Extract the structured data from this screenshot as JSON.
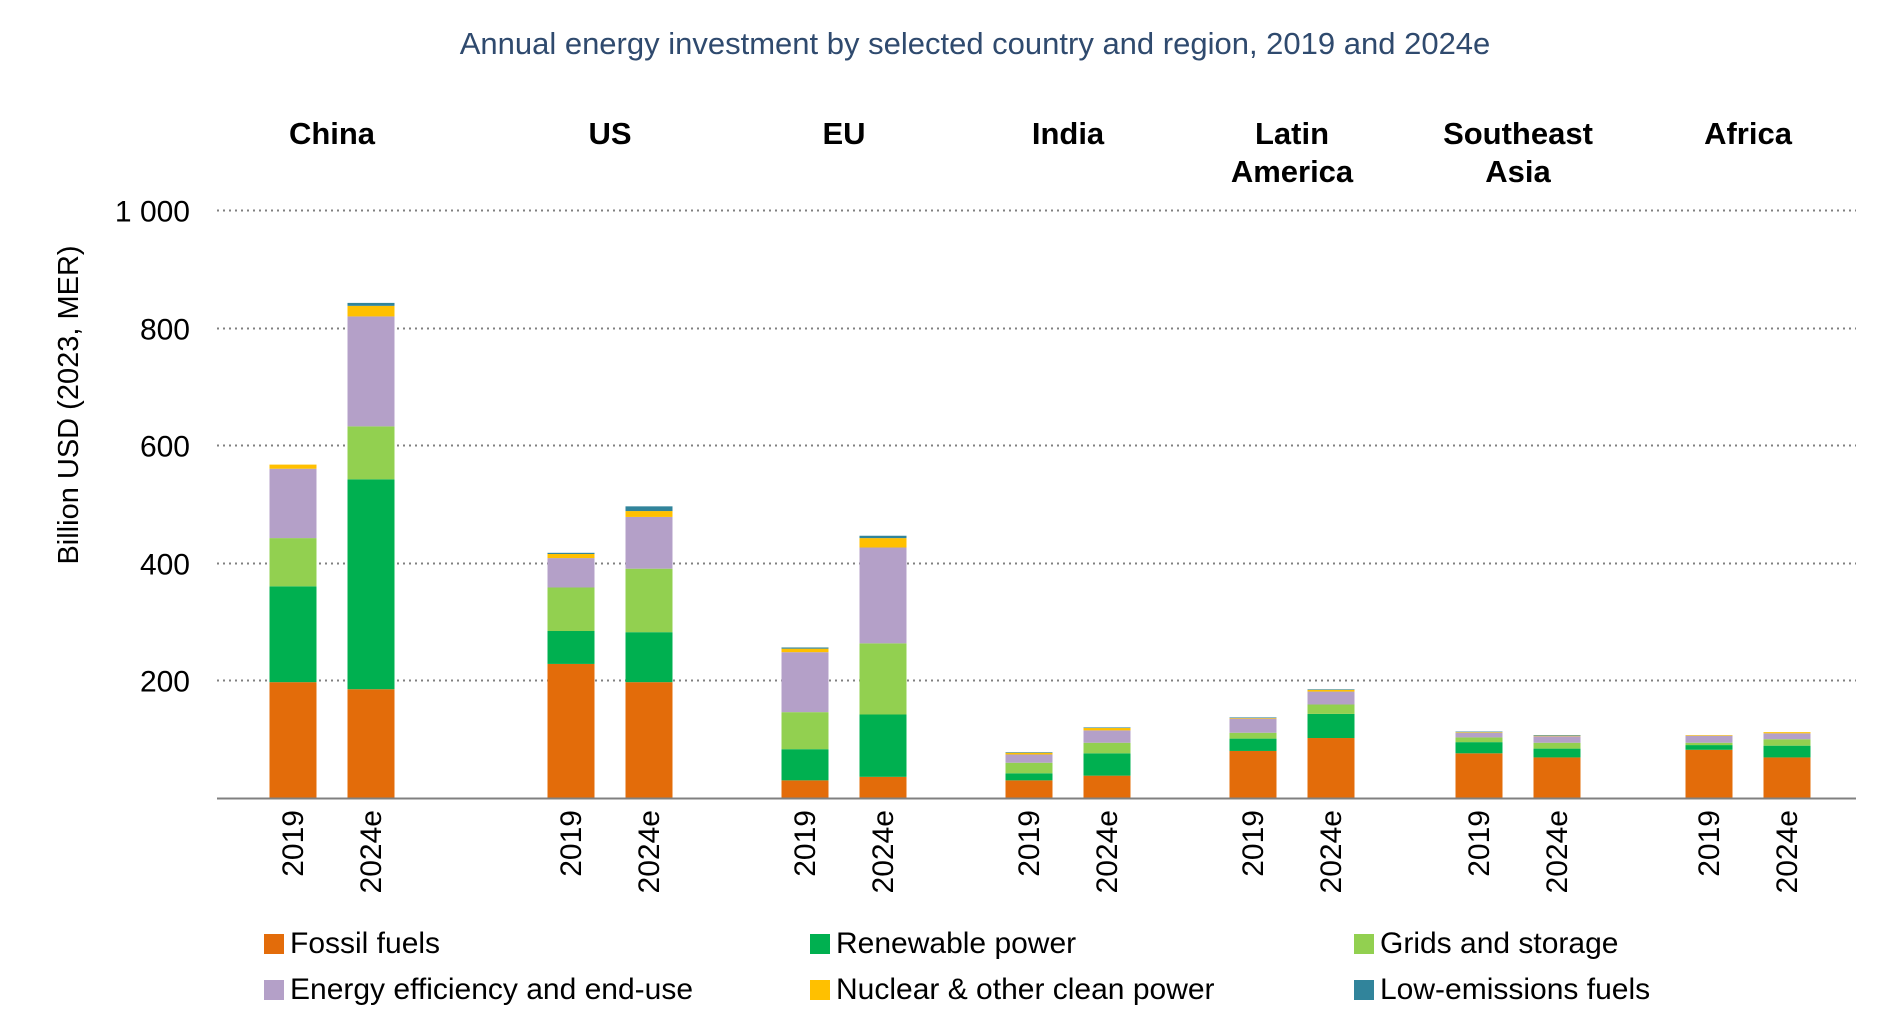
{
  "chart_data": {
    "type": "bar",
    "stacked": true,
    "title": "Annual energy investment by selected country and region, 2019 and 2024e",
    "ylabel": "Billion USD (2023, MER)",
    "ylim": [
      0,
      1000
    ],
    "yticks": [
      200,
      400,
      600,
      800,
      1000
    ],
    "ytick_labels": [
      "200",
      "400",
      "600",
      "800",
      "1 000"
    ],
    "grid": true,
    "legend_position": "bottom",
    "groups": [
      {
        "label": "China",
        "bars": [
          {
            "label": "2019",
            "values": [
              197,
              163,
              82,
              118,
              7,
              0
            ]
          },
          {
            "label": "2024e",
            "values": [
              185,
              357,
              90,
              187,
              18,
              5
            ]
          }
        ]
      },
      {
        "label": "US",
        "bars": [
          {
            "label": "2019",
            "values": [
              228,
              56,
              74,
              50,
              7,
              2
            ]
          },
          {
            "label": "2024e",
            "values": [
              197,
              85,
              108,
              88,
              10,
              8
            ]
          }
        ]
      },
      {
        "label": "EU",
        "bars": [
          {
            "label": "2019",
            "values": [
              30,
              53,
              63,
              102,
              6,
              2
            ]
          },
          {
            "label": "2024e",
            "values": [
              36,
              106,
              121,
              163,
              16,
              4
            ]
          }
        ]
      },
      {
        "label": "India",
        "bars": [
          {
            "label": "2019",
            "values": [
              30,
              12,
              18,
              14,
              3,
              1
            ]
          },
          {
            "label": "2024e",
            "values": [
              38,
              38,
              18,
              21,
              4,
              1
            ]
          }
        ]
      },
      {
        "label": "Latin\nAmerica",
        "bars": [
          {
            "label": "2019",
            "values": [
              80,
              21,
              10,
              24,
              1,
              1
            ]
          },
          {
            "label": "2024e",
            "values": [
              102,
              41,
              16,
              22,
              3,
              1
            ]
          }
        ]
      },
      {
        "label": "Southeast\nAsia",
        "bars": [
          {
            "label": "2019",
            "values": [
              76,
              19,
              8,
              8,
              1,
              1
            ]
          },
          {
            "label": "2024e",
            "values": [
              69,
              15,
              10,
              11,
              1,
              1
            ]
          }
        ]
      },
      {
        "label": "Africa",
        "bars": [
          {
            "label": "2019",
            "values": [
              82,
              8,
              4,
              12,
              1,
              0
            ]
          },
          {
            "label": "2024e",
            "values": [
              69,
              20,
              11,
              10,
              2,
              0
            ]
          }
        ]
      }
    ],
    "series": [
      {
        "name": "Fossil fuels",
        "color": "#e36c0a"
      },
      {
        "name": "Renewable power",
        "color": "#00b050"
      },
      {
        "name": "Grids and storage",
        "color": "#92d050"
      },
      {
        "name": "Energy efficiency and end-use",
        "color": "#b4a0c8"
      },
      {
        "name": "Nuclear & other clean power",
        "color": "#ffc000"
      },
      {
        "name": "Low-emissions fuels",
        "color": "#31849b"
      }
    ]
  }
}
